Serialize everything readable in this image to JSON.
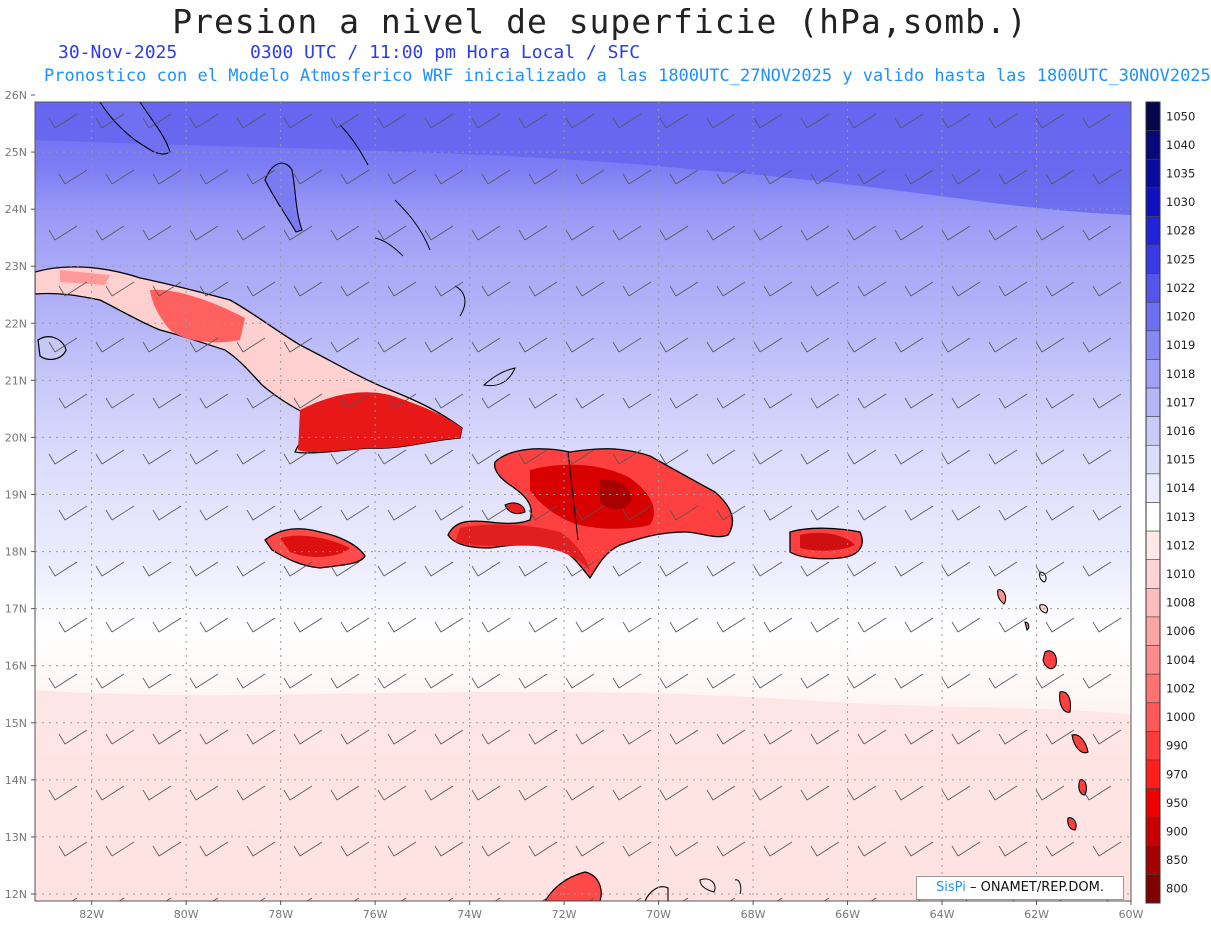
{
  "title": "Presion a nivel de superficie (hPa,somb.)",
  "subtitle": {
    "date": "30-Nov-2025",
    "time": "0300 UTC / 11:00 pm Hora Local / SFC",
    "model_line": "Pronostico con el Modelo Atmosferico WRF inicializado a las 1800UTC_27NOV2025 y valido hasta las  1800UTC_30NOV2025"
  },
  "map": {
    "lat_labels": [
      "26N",
      "25N",
      "24N",
      "23N",
      "22N",
      "21N",
      "20N",
      "19N",
      "18N",
      "17N",
      "16N",
      "15N",
      "14N",
      "13N",
      "12N"
    ],
    "lon_labels": [
      "82W",
      "80W",
      "78W",
      "76W",
      "74W",
      "72W",
      "70W",
      "68W",
      "66W",
      "64W",
      "62W",
      "60W"
    ],
    "lat_range": [
      12,
      26
    ],
    "lon_range": [
      -83.2,
      -60
    ],
    "grid": "dotted",
    "wind_barbs": true
  },
  "colorbar": {
    "levels": [
      "1050",
      "1040",
      "1035",
      "1030",
      "1028",
      "1025",
      "1022",
      "1020",
      "1019",
      "1018",
      "1017",
      "1016",
      "1015",
      "1014",
      "1013",
      "1012",
      "1010",
      "1008",
      "1006",
      "1004",
      "1002",
      "1000",
      "990",
      "970",
      "950",
      "900",
      "850",
      "800"
    ],
    "colors": [
      "#06064a",
      "#08087a",
      "#0b0b9e",
      "#1010c0",
      "#2222d6",
      "#3a3ae4",
      "#5555ea",
      "#6e6ef0",
      "#8888f3",
      "#a0a0f5",
      "#b6b6f7",
      "#cacaf9",
      "#dcdcfb",
      "#ececfd",
      "#ffffff",
      "#ffe8e8",
      "#ffd4d4",
      "#ffbcbc",
      "#ffa4a4",
      "#ff8c8c",
      "#ff7272",
      "#ff5858",
      "#ff3c3c",
      "#ff1e1e",
      "#ee0000",
      "#c80000",
      "#a30000",
      "#800000"
    ]
  },
  "credit": {
    "brand": "SisPi",
    "rest": " – ONAMET/REP.DOM."
  }
}
